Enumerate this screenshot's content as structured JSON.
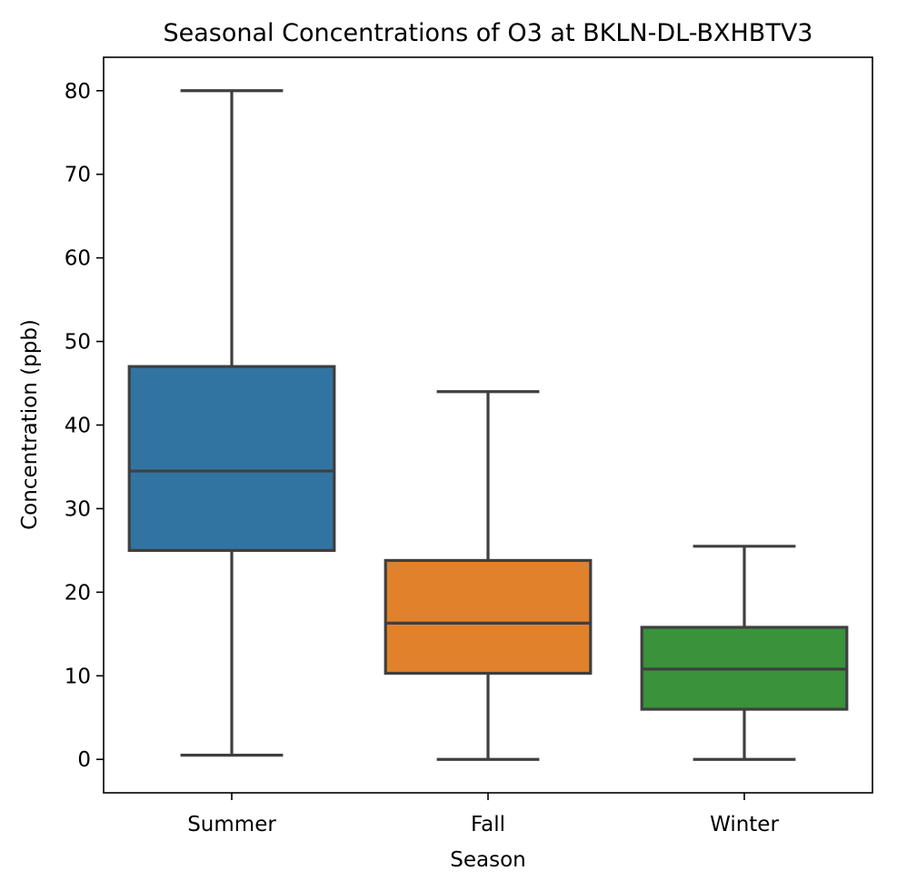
{
  "chart_data": {
    "type": "box",
    "title": "Seasonal Concentrations of O3 at BKLN-DL-BXHBTV3",
    "xlabel": "Season",
    "ylabel": "Concentration (ppb)",
    "ylim": [
      -4,
      84
    ],
    "yticks": [
      0,
      10,
      20,
      30,
      40,
      50,
      60,
      70,
      80
    ],
    "grid": false,
    "legend": "none",
    "categories": [
      "Summer",
      "Fall",
      "Winter"
    ],
    "boxes": [
      {
        "category": "Summer",
        "whisker_low": 0.5,
        "q1": 25.0,
        "median": 34.5,
        "q3": 47.0,
        "whisker_high": 80.0,
        "color": "#3274a1"
      },
      {
        "category": "Fall",
        "whisker_low": 0.0,
        "q1": 10.3,
        "median": 16.3,
        "q3": 23.8,
        "whisker_high": 44.0,
        "color": "#e1812c"
      },
      {
        "category": "Winter",
        "whisker_low": 0.0,
        "q1": 6.0,
        "median": 10.8,
        "q3": 15.8,
        "whisker_high": 25.5,
        "color": "#3a923a"
      }
    ],
    "line_color": "#3f3f3f"
  }
}
